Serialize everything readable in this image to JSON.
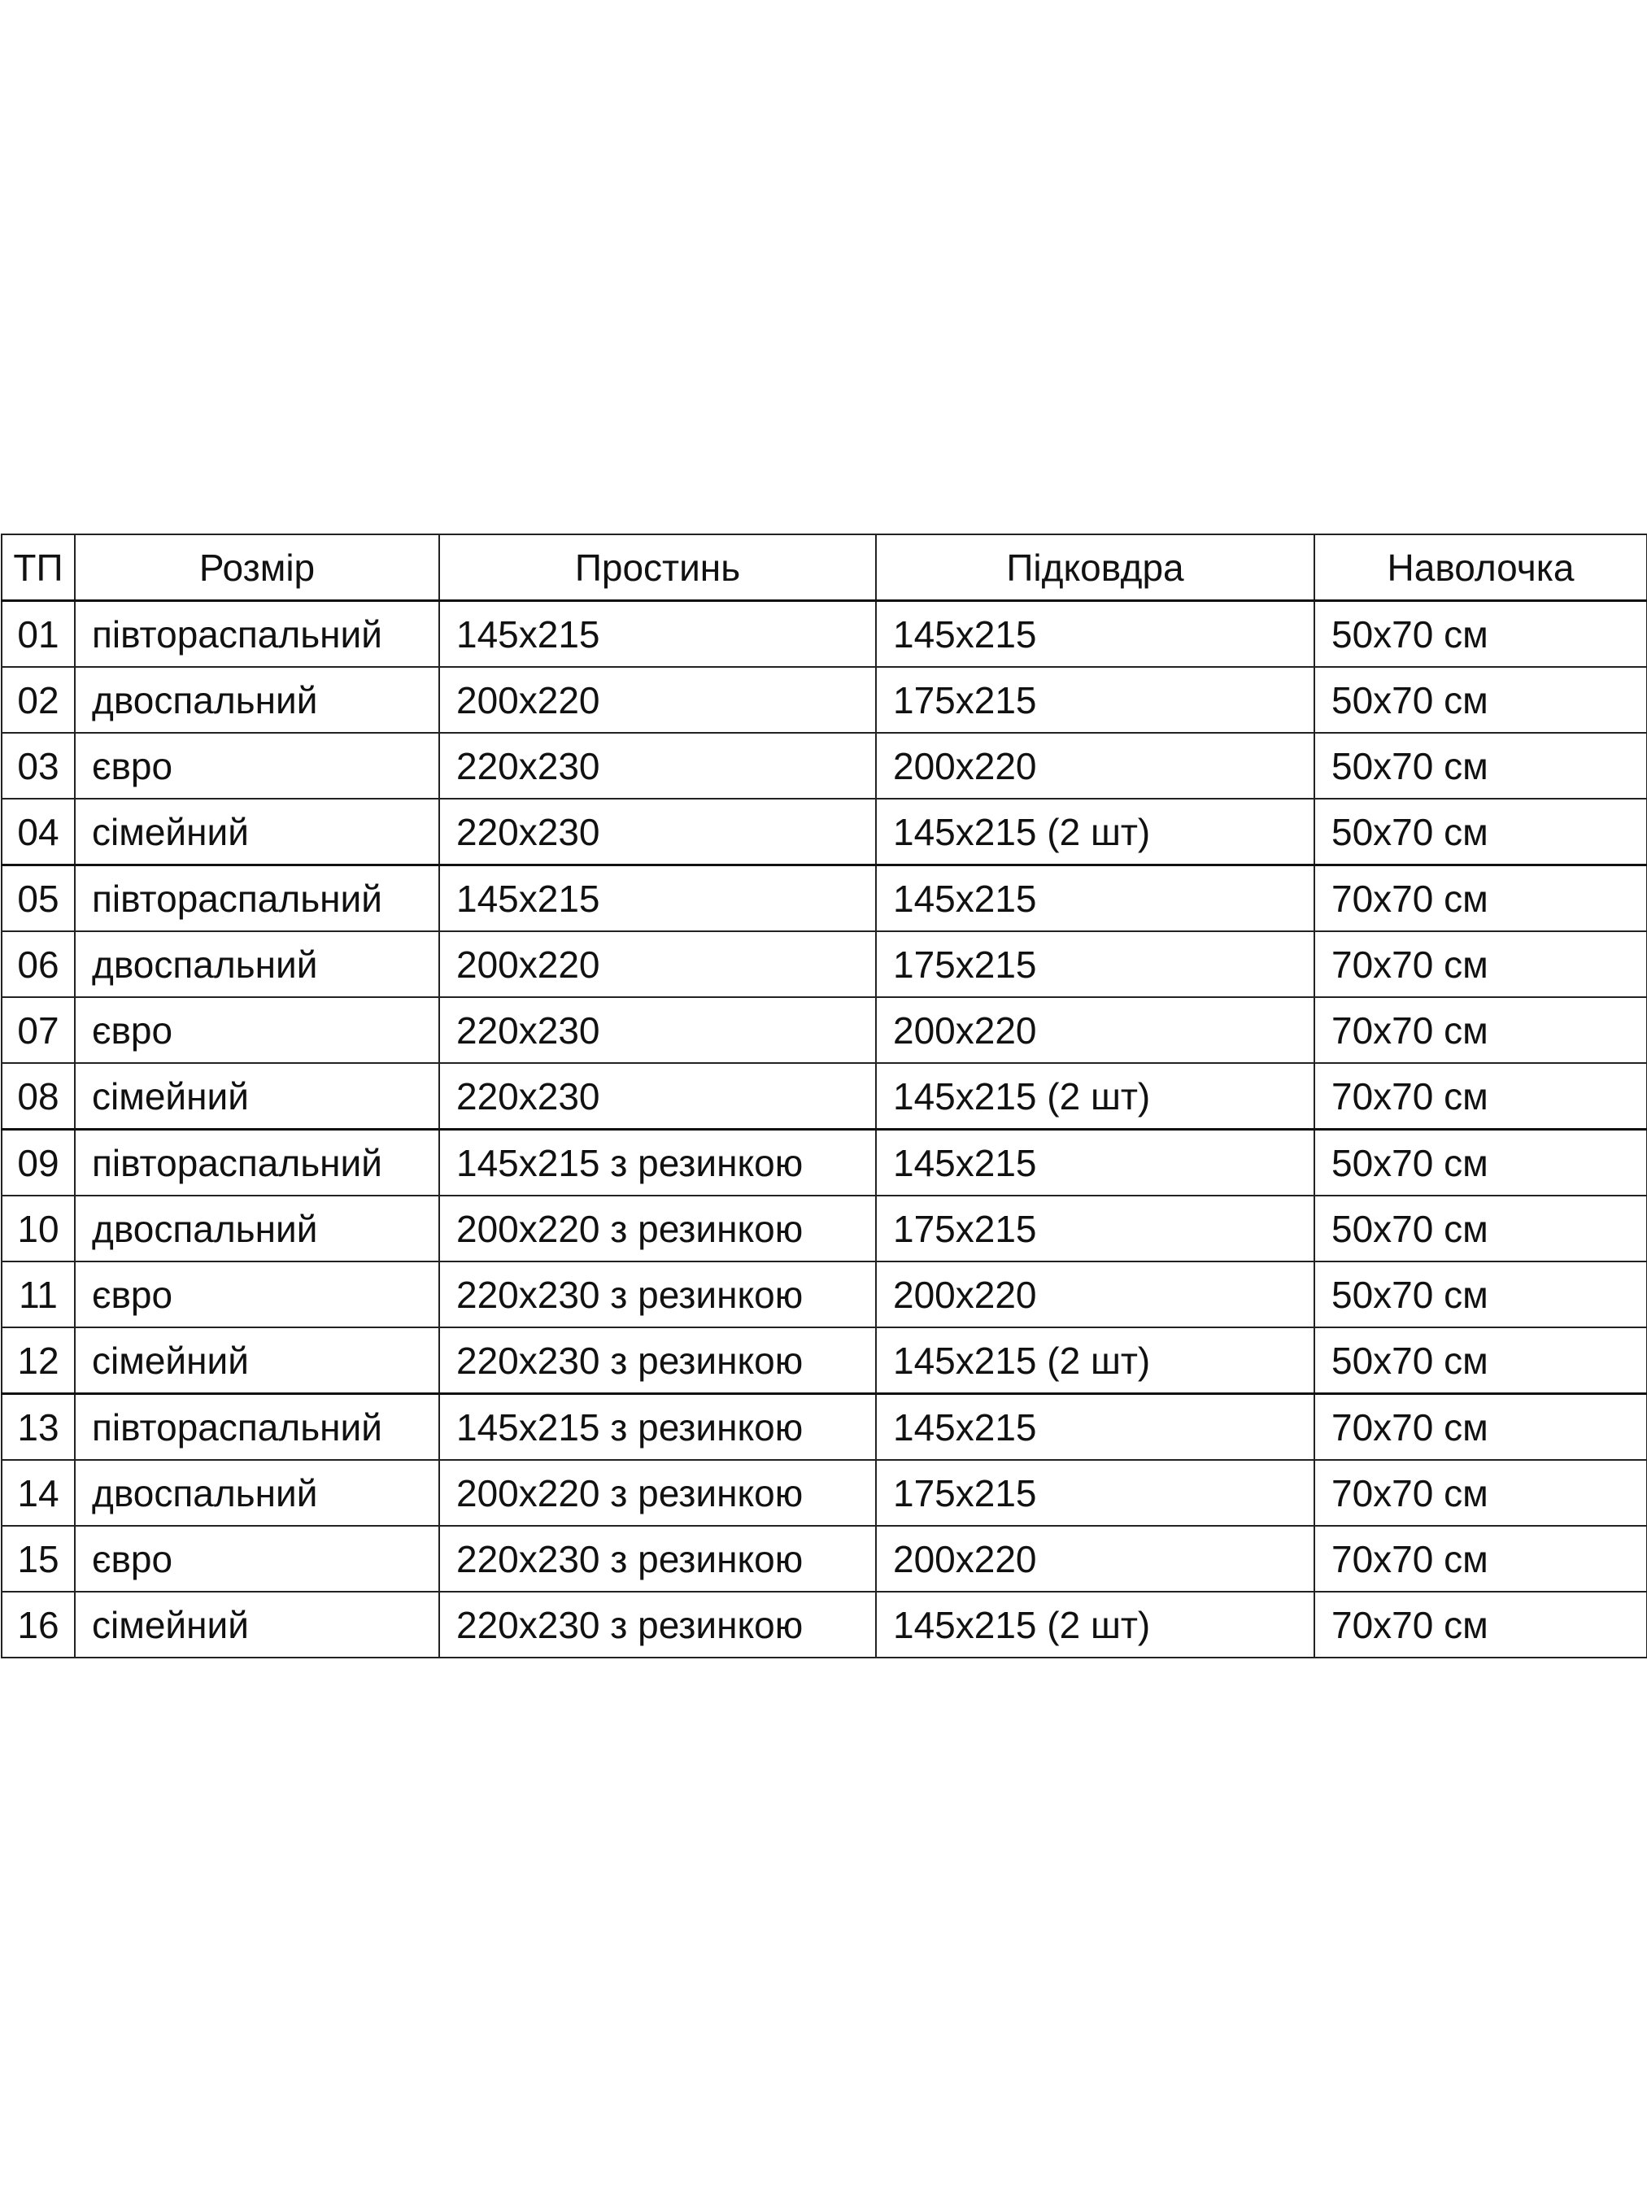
{
  "table": {
    "headers": [
      "ТП",
      "Розмір",
      "Простинь",
      "Підковдра",
      "Наволочка"
    ],
    "rows": [
      [
        "01",
        "півтораспальний",
        "145x215",
        "145x215",
        "50x70 см"
      ],
      [
        "02",
        "двоспальний",
        "200x220",
        "175x215",
        "50x70 см"
      ],
      [
        "03",
        "євро",
        "220x230",
        "200x220",
        "50x70 см"
      ],
      [
        "04",
        "сімейний",
        "220x230",
        "145x215 (2 шт)",
        "50x70 см"
      ],
      [
        "05",
        "півтораспальний",
        "145x215",
        "145x215",
        "70x70 см"
      ],
      [
        "06",
        "двоспальний",
        "200x220",
        "175x215",
        "70x70 см"
      ],
      [
        "07",
        "євро",
        "220x230",
        "200x220",
        "70x70 см"
      ],
      [
        "08",
        "сімейний",
        "220x230",
        "145x215 (2 шт)",
        "70x70 см"
      ],
      [
        "09",
        "півтораспальний",
        "145x215 з резинкою",
        "145x215",
        "50x70 см"
      ],
      [
        "10",
        "двоспальний",
        "200x220 з резинкою",
        "175x215",
        "50x70 см"
      ],
      [
        "11",
        "євро",
        "220x230 з резинкою",
        "200x220",
        "50x70 см"
      ],
      [
        "12",
        "сімейний",
        "220x230 з резинкою",
        "145x215 (2 шт)",
        "50x70 см"
      ],
      [
        "13",
        "півтораспальний",
        "145x215 з резинкою",
        "145x215",
        "70x70 см"
      ],
      [
        "14",
        "двоспальний",
        "200x220 з резинкою",
        "175x215",
        "70x70 см"
      ],
      [
        "15",
        "євро",
        "220x230 з резинкою",
        "200x220",
        "70x70 см"
      ],
      [
        "16",
        "сімейний",
        "220x230 з резинкою",
        "145x215 (2 шт)",
        "70x70 см"
      ]
    ]
  }
}
